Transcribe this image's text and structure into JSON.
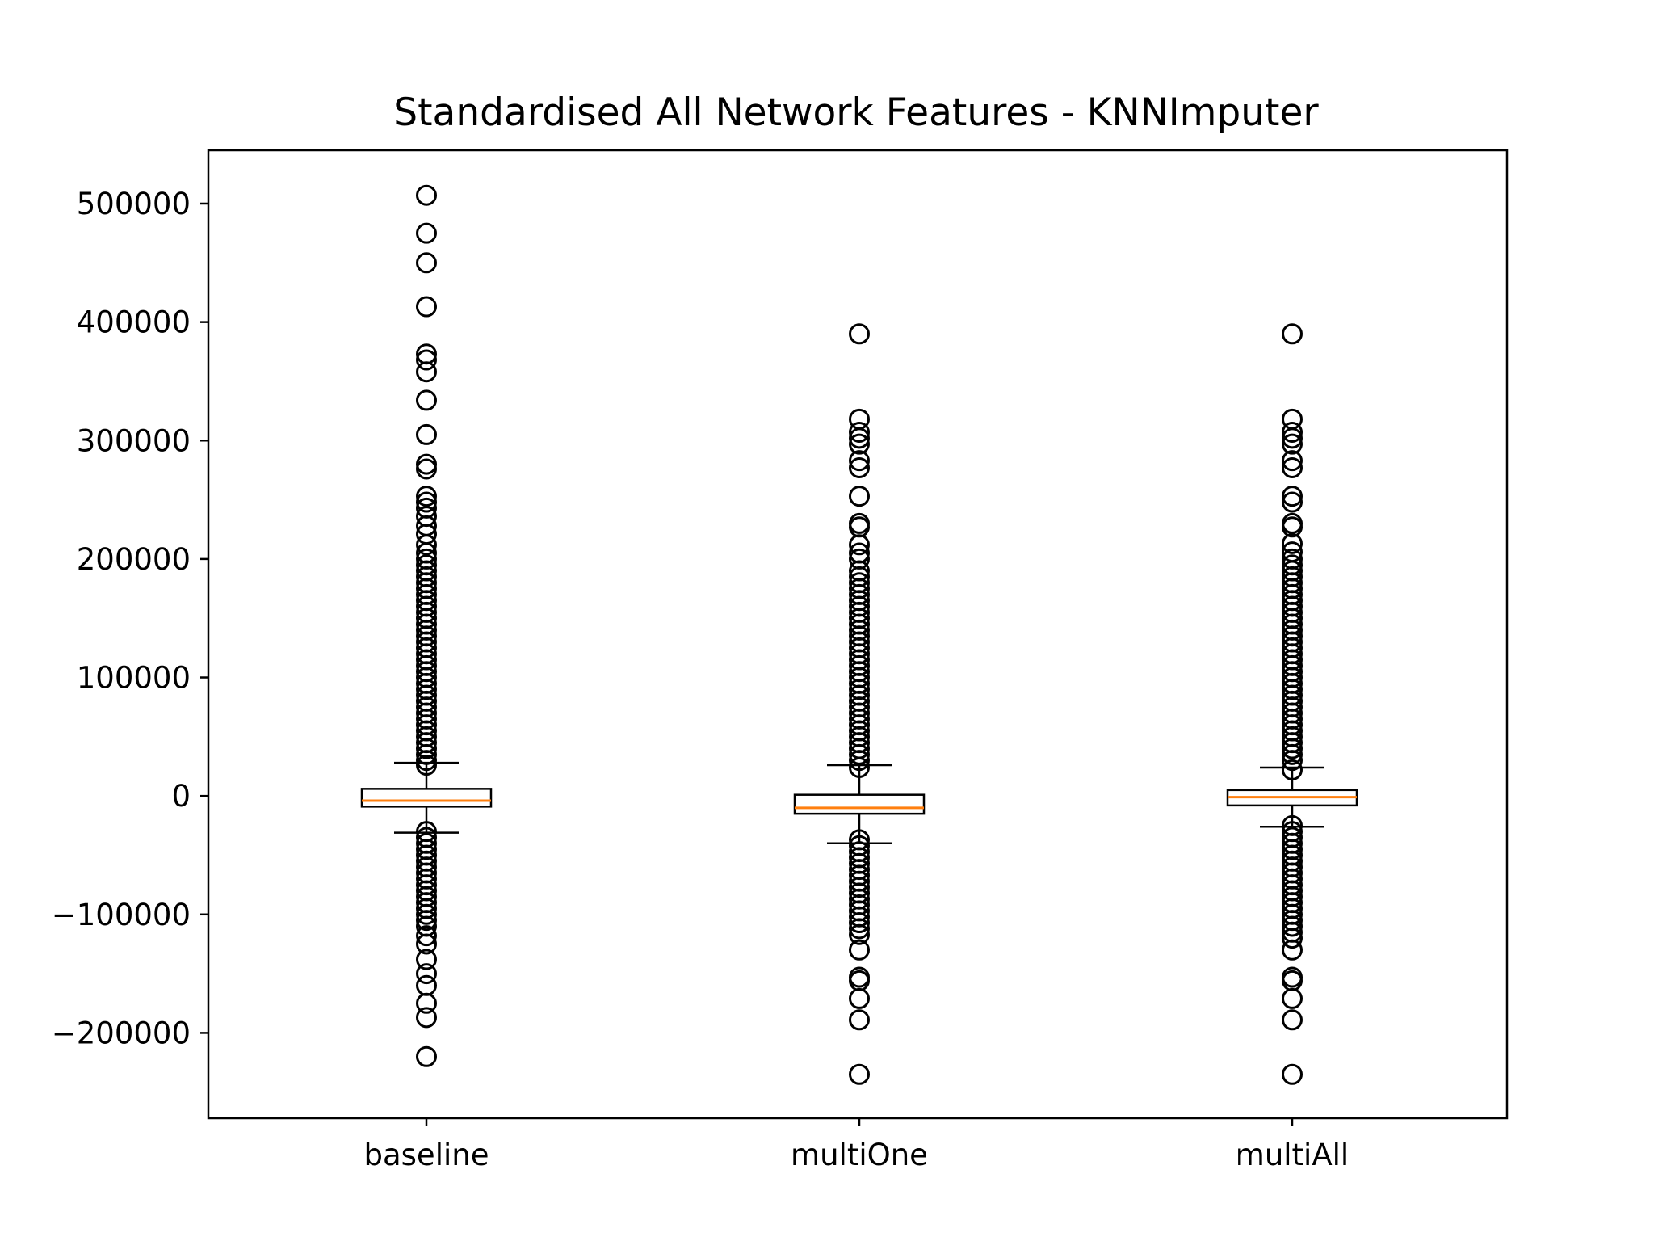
{
  "chart_data": {
    "type": "boxplot",
    "title": "Standardised All Network Features - KNNImputer",
    "xlabel": "",
    "ylabel": "",
    "ylim": [
      -272000,
      545000
    ],
    "yticks": [
      -200000,
      -100000,
      0,
      100000,
      200000,
      300000,
      400000,
      500000
    ],
    "ytick_labels": [
      "−200000",
      "−100000",
      "0",
      "100000",
      "200000",
      "300000",
      "400000",
      "500000"
    ],
    "categories": [
      "baseline",
      "multiOne",
      "multiAll"
    ],
    "grid": false,
    "legend": "none",
    "colors": {
      "box": "#000000",
      "median": "#ff7f0e",
      "flier": "#000000"
    },
    "series": [
      {
        "whisker_low": -31000,
        "q1": -9000,
        "median": -4000,
        "q3": 6000,
        "whisker_high": 28000,
        "fliers": [
          507000,
          475000,
          450000,
          413000,
          373000,
          368000,
          358000,
          334000,
          305000,
          280000,
          276000,
          253000,
          248000,
          243000,
          236000,
          228000,
          221000,
          212000,
          205000,
          200000,
          195000,
          190000,
          185000,
          180000,
          175000,
          170000,
          165000,
          160000,
          155000,
          150000,
          145000,
          140000,
          135000,
          130000,
          125000,
          120000,
          115000,
          110000,
          105000,
          100000,
          95000,
          90000,
          85000,
          80000,
          75000,
          70000,
          65000,
          60000,
          55000,
          50000,
          45000,
          40000,
          35000,
          30000,
          26000,
          -30000,
          -35000,
          -40000,
          -45000,
          -50000,
          -55000,
          -60000,
          -65000,
          -70000,
          -75000,
          -80000,
          -85000,
          -90000,
          -95000,
          -100000,
          -105000,
          -110000,
          -118000,
          -125000,
          -138000,
          -150000,
          -160000,
          -175000,
          -187000,
          -220000
        ]
      },
      {
        "whisker_low": -40000,
        "q1": -15000,
        "median": -10000,
        "q3": 1000,
        "whisker_high": 26000,
        "fliers": [
          390000,
          318000,
          307000,
          302000,
          297000,
          283000,
          277000,
          253000,
          230000,
          227000,
          212000,
          205000,
          200000,
          190000,
          185000,
          180000,
          175000,
          170000,
          165000,
          160000,
          155000,
          150000,
          145000,
          140000,
          135000,
          130000,
          125000,
          120000,
          115000,
          110000,
          105000,
          100000,
          95000,
          90000,
          85000,
          80000,
          75000,
          70000,
          65000,
          60000,
          55000,
          50000,
          45000,
          40000,
          35000,
          30000,
          24000,
          -37000,
          -42000,
          -47000,
          -52000,
          -57000,
          -62000,
          -67000,
          -72000,
          -77000,
          -82000,
          -87000,
          -92000,
          -97000,
          -102000,
          -107000,
          -112000,
          -117000,
          -130000,
          -153000,
          -156000,
          -171000,
          -189000,
          -235000
        ]
      },
      {
        "whisker_low": -26000,
        "q1": -8000,
        "median": -1000,
        "q3": 5000,
        "whisker_high": 24000,
        "fliers": [
          390000,
          318000,
          307000,
          302000,
          297000,
          283000,
          277000,
          253000,
          248000,
          230000,
          227000,
          213000,
          206000,
          200000,
          195000,
          190000,
          185000,
          180000,
          175000,
          170000,
          165000,
          160000,
          155000,
          150000,
          145000,
          140000,
          135000,
          130000,
          125000,
          120000,
          115000,
          110000,
          105000,
          100000,
          95000,
          90000,
          85000,
          80000,
          75000,
          70000,
          65000,
          60000,
          55000,
          50000,
          45000,
          40000,
          35000,
          30000,
          22000,
          -25000,
          -30000,
          -35000,
          -40000,
          -45000,
          -50000,
          -55000,
          -60000,
          -65000,
          -70000,
          -75000,
          -80000,
          -85000,
          -90000,
          -95000,
          -100000,
          -105000,
          -110000,
          -115000,
          -120000,
          -130000,
          -153000,
          -156000,
          -171000,
          -189000,
          -235000
        ]
      }
    ]
  }
}
